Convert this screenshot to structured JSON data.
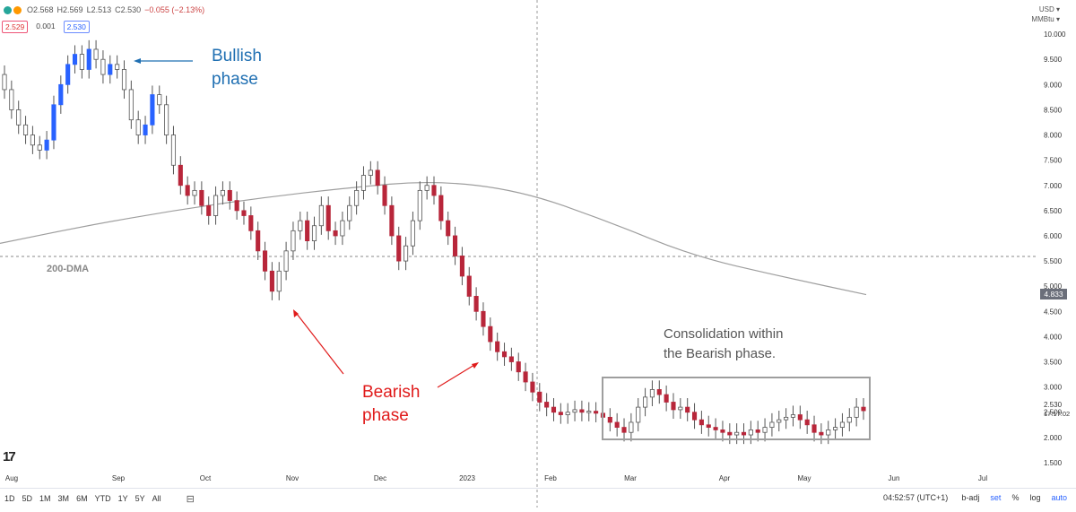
{
  "header": {
    "ohlc": {
      "open": "O2.568",
      "high": "H2.569",
      "low": "L2.513",
      "close": "C2.530",
      "change": "−0.055 (−2.13%)"
    },
    "sell_price": "2.529",
    "spread": "0.001",
    "buy_price": "2.530",
    "currency": "USD ▾",
    "unit": "MMBtu ▾"
  },
  "annotations": {
    "bullish_1": "Bullish",
    "bullish_2": "phase",
    "bearish_1": "Bearish",
    "bearish_2": "phase",
    "consolidation_1": "Consolidation within",
    "consolidation_2": "the Bearish phase.",
    "dma": "200-DMA"
  },
  "price_tags": {
    "current": "4.833",
    "last": "2.530",
    "countdown": "17:17:02"
  },
  "bottom_bar": {
    "timeframes": [
      "1D",
      "5D",
      "1M",
      "3M",
      "6M",
      "YTD",
      "1Y",
      "5Y",
      "All"
    ],
    "clock": "04:52:57 (UTC+1)",
    "badj": "b-adj",
    "set": "set",
    "pct": "%",
    "log": "log",
    "auto": "auto"
  },
  "colors": {
    "up": "#2962ff",
    "down": "#b8263a",
    "neutral": "#ffffff",
    "dma": "#9e9e9e",
    "bull_text": "#1f6fb2",
    "bear_text": "#e01b1b"
  },
  "chart_data": {
    "type": "candlestick",
    "ylim": [
      1.25,
      10.5
    ],
    "y_ticks": [
      "1.500",
      "2.000",
      "2.500",
      "3.000",
      "3.500",
      "4.000",
      "4.500",
      "5.000",
      "5.500",
      "6.000",
      "6.500",
      "7.000",
      "7.500",
      "8.000",
      "8.500",
      "9.000",
      "9.500",
      "10.000"
    ],
    "x_ticks": [
      "Aug",
      "Sep",
      "Oct",
      "Nov",
      "Dec",
      "2023",
      "Feb",
      "Mar",
      "Apr",
      "May",
      "Jun",
      "Jul"
    ],
    "closes": [
      8.9,
      8.5,
      8.2,
      8.0,
      7.8,
      7.7,
      7.9,
      8.6,
      9.0,
      9.4,
      9.6,
      9.3,
      9.7,
      9.5,
      9.2,
      9.4,
      9.3,
      8.9,
      8.3,
      8.0,
      8.2,
      8.8,
      8.6,
      8.0,
      7.4,
      7.0,
      6.8,
      6.9,
      6.6,
      6.4,
      6.8,
      6.9,
      6.7,
      6.5,
      6.4,
      6.1,
      5.7,
      5.3,
      4.9,
      5.3,
      5.7,
      6.1,
      6.3,
      5.9,
      6.2,
      6.6,
      6.1,
      6.0,
      6.3,
      6.6,
      6.9,
      7.2,
      7.3,
      7.0,
      6.6,
      6.0,
      5.5,
      5.8,
      6.3,
      6.9,
      7.0,
      6.8,
      6.3,
      6.0,
      5.6,
      5.2,
      4.8,
      4.5,
      4.2,
      3.9,
      3.7,
      3.6,
      3.5,
      3.3,
      3.1,
      2.9,
      2.7,
      2.6,
      2.5,
      2.45,
      2.5,
      2.55,
      2.5,
      2.52,
      2.48,
      2.4,
      2.3,
      2.2,
      2.1,
      2.3,
      2.6,
      2.8,
      2.95,
      2.85,
      2.7,
      2.55,
      2.6,
      2.5,
      2.35,
      2.25,
      2.2,
      2.15,
      2.1,
      2.05,
      2.1,
      2.05,
      2.15,
      2.1,
      2.2,
      2.3,
      2.35,
      2.4,
      2.45,
      2.35,
      2.25,
      2.1,
      2.05,
      2.15,
      2.2,
      2.3,
      2.4,
      2.6,
      2.53
    ],
    "series": [
      {
        "name": "200-DMA",
        "x": [
          0,
          0.1,
          0.2,
          0.3,
          0.4,
          0.5,
          0.6,
          0.7,
          0.8,
          0.9,
          1.0
        ],
        "values": [
          5.85,
          6.2,
          6.5,
          6.75,
          6.95,
          7.1,
          6.9,
          6.3,
          5.6,
          5.2,
          4.833
        ]
      }
    ],
    "support_level": 5.6,
    "range_box_price": [
      1.85,
      3.05
    ]
  }
}
